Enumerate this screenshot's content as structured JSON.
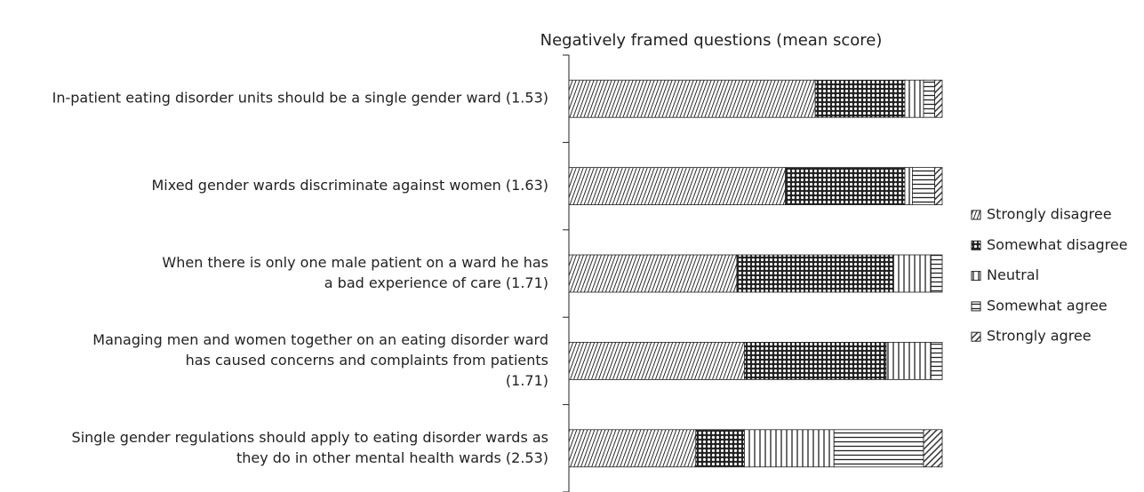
{
  "chart_data": {
    "type": "stacked-bar-horizontal",
    "title": "Negatively framed questions (mean score)",
    "categories": [
      [
        "In-patient eating disorder units should be a single gender ward (1.53)"
      ],
      [
        "Mixed gender wards discriminate against women (1.63)"
      ],
      [
        "When there is only one male patient on a ward he has",
        "a bad experience of care (1.71)"
      ],
      [
        "Managing men and women together on an eating disorder ward",
        "has caused concerns and complaints from patients",
        "(1.71)"
      ],
      [
        "Single gender regulations should apply to eating disorder wards as",
        "they do in other mental health wards (2.53)"
      ]
    ],
    "xlim": [
      0,
      100
    ],
    "legend": "right",
    "series": [
      {
        "name": "Strongly disagree",
        "pattern": "fine-diagonal",
        "values": [
          66,
          58,
          45,
          47,
          34
        ]
      },
      {
        "name": "Somewhat disagree",
        "pattern": "dots",
        "values": [
          24,
          32,
          42,
          38,
          13
        ]
      },
      {
        "name": "Neutral",
        "pattern": "vertical",
        "values": [
          5,
          2,
          10,
          12,
          24
        ]
      },
      {
        "name": "Somewhat agree",
        "pattern": "horizontal",
        "values": [
          3,
          6,
          3,
          3,
          24
        ]
      },
      {
        "name": "Strongly agree",
        "pattern": "diagonal",
        "values": [
          2,
          2,
          0,
          0,
          5
        ]
      }
    ]
  }
}
